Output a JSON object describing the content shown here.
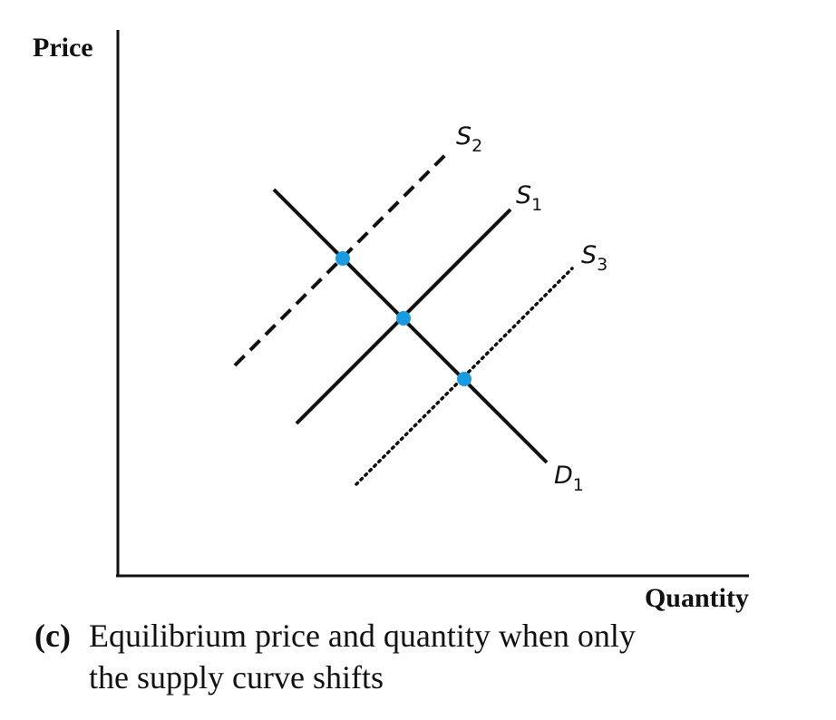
{
  "diagram": {
    "y_axis_label": "Price",
    "x_axis_label": "Quantity",
    "curves": [
      {
        "id": "S2",
        "letter": "S",
        "subscript": "2",
        "style": "dashed"
      },
      {
        "id": "S1",
        "letter": "S",
        "subscript": "1",
        "style": "solid"
      },
      {
        "id": "S3",
        "letter": "S",
        "subscript": "3",
        "style": "dotted"
      },
      {
        "id": "D1",
        "letter": "D",
        "subscript": "1",
        "style": "solid"
      }
    ],
    "equilibrium_point_color": "#1a9be0",
    "line_color": "#111111"
  },
  "caption": {
    "tag": "(c)",
    "line1": "Equilibrium price and quantity when only",
    "line2": "the supply curve shifts"
  }
}
